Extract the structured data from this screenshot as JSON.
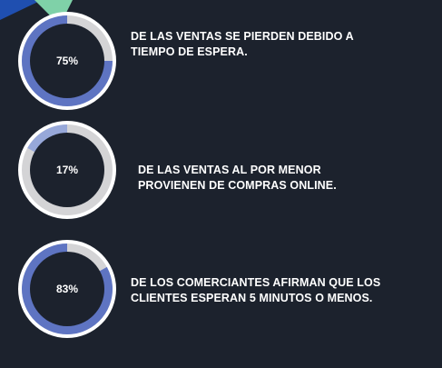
{
  "colors": {
    "background": "#1c222d",
    "ring_outer": "#ffffff",
    "ring_track": "#d4d4d6",
    "ring_fill": "#5e74c2",
    "ring_fill_light": "#97a8d9",
    "center": "#1c222d",
    "text": "#ffffff",
    "corner_blue": "#1f4fb0",
    "corner_green": "#7fd1a8"
  },
  "chart_data": [
    {
      "type": "pie",
      "style": "donut",
      "value": 75,
      "value_label": "75%",
      "caption": "DE LAS VENTAS SE PIERDEN DEBIDO A\nTIEMPO DE ESPERA."
    },
    {
      "type": "pie",
      "style": "donut",
      "value": 17,
      "value_label": "17%",
      "caption": "DE LAS VENTAS AL POR MENOR\nPROVIENEN DE  COMPRAS ONLINE."
    },
    {
      "type": "pie",
      "style": "donut",
      "value": 83,
      "value_label": "83%",
      "caption": "DE LOS COMERCIANTES AFIRMAN QUE LOS\nCLIENTES ESPERAN 5 MINUTOS O MENOS."
    }
  ]
}
